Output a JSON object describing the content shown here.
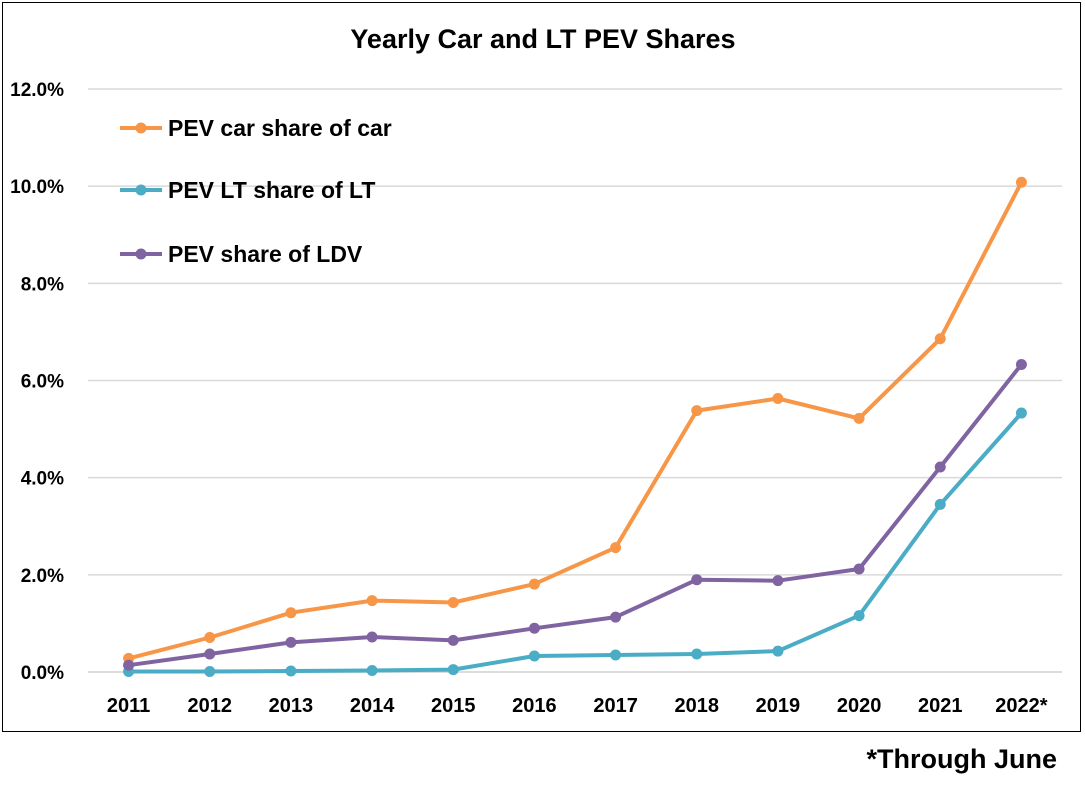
{
  "footnote": "*Through June",
  "chart_data": {
    "type": "line",
    "title": "Yearly Car and LT PEV Shares",
    "xlabel": "",
    "ylabel": "",
    "categories": [
      "2011",
      "2012",
      "2013",
      "2014",
      "2015",
      "2016",
      "2017",
      "2018",
      "2019",
      "2020",
      "2021",
      "2022*"
    ],
    "ylim": [
      0,
      12
    ],
    "yticks": [
      "0.0%",
      "2.0%",
      "4.0%",
      "6.0%",
      "8.0%",
      "10.0%",
      "12.0%"
    ],
    "ytick_values": [
      0,
      2,
      4,
      6,
      8,
      10,
      12
    ],
    "grid": true,
    "legend_position": "top-left",
    "series": [
      {
        "name": "PEV car share of car",
        "color": "#F79646",
        "values": [
          0.28,
          0.71,
          1.22,
          1.47,
          1.43,
          1.81,
          2.56,
          5.38,
          5.63,
          5.22,
          6.86,
          10.08
        ]
      },
      {
        "name": "PEV LT share of LT",
        "color": "#4BACC6",
        "values": [
          0.01,
          0.01,
          0.02,
          0.03,
          0.05,
          0.33,
          0.35,
          0.37,
          0.43,
          1.16,
          3.45,
          5.33
        ]
      },
      {
        "name": "PEV share of LDV",
        "color": "#8064A2",
        "values": [
          0.14,
          0.37,
          0.61,
          0.72,
          0.65,
          0.9,
          1.13,
          1.9,
          1.88,
          2.12,
          4.22,
          6.33
        ]
      }
    ]
  }
}
